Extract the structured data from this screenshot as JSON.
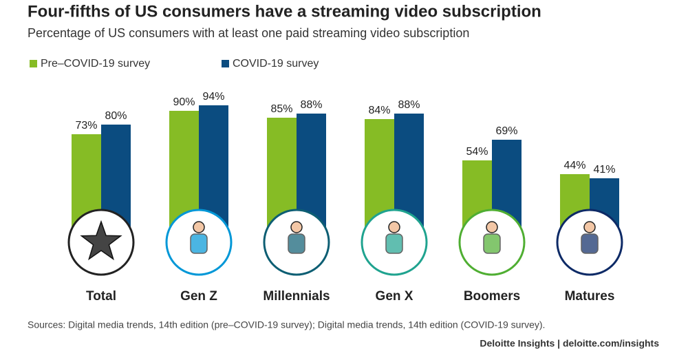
{
  "chart_data": {
    "type": "bar",
    "title": "Four-fifths of US consumers have a streaming video subscription",
    "subtitle": "Percentage of US consumers with at least one paid streaming video subscription",
    "categories": [
      "Total",
      "Gen Z",
      "Millennials",
      "Gen X",
      "Boomers",
      "Matures"
    ],
    "series": [
      {
        "name": "Pre–COVID-19 survey",
        "color": "#86bc25",
        "values": [
          73,
          90,
          85,
          84,
          54,
          44
        ],
        "value_labels": [
          "73%",
          "90%",
          "85%",
          "84%",
          "54%",
          "44%"
        ]
      },
      {
        "name": "COVID-19 survey",
        "color": "#0b4c80",
        "values": [
          80,
          94,
          88,
          88,
          69,
          41
        ],
        "value_labels": [
          "80%",
          "94%",
          "88%",
          "88%",
          "69%",
          "41%"
        ]
      }
    ],
    "ylim": [
      0,
      100
    ],
    "source": "Sources: Digital media trends, 14th edition (pre–COVID-19 survey); Digital media trends, 14th edition (COVID-19 survey).",
    "credit": "Deloitte Insights | deloitte.com/insights"
  }
}
